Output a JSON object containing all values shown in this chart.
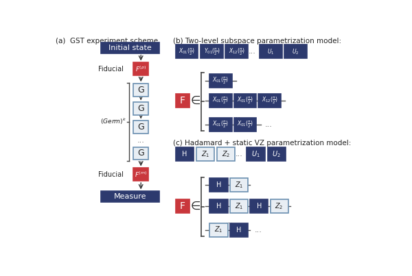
{
  "dark_blue": "#2d3a6e",
  "crimson": "#c9373c",
  "white": "#ffffff",
  "light_gray": "#e8eef4",
  "germ_box_border": "#6a8fb0",
  "bg": "#ffffff",
  "text_dark": "#222222",
  "panel_a_title": "(a)  GST experiment scheme",
  "panel_b_title": "(b) Two-level subspace parametrization model:",
  "panel_c_title": "(c) Hadamard + static VZ parametrization model:"
}
